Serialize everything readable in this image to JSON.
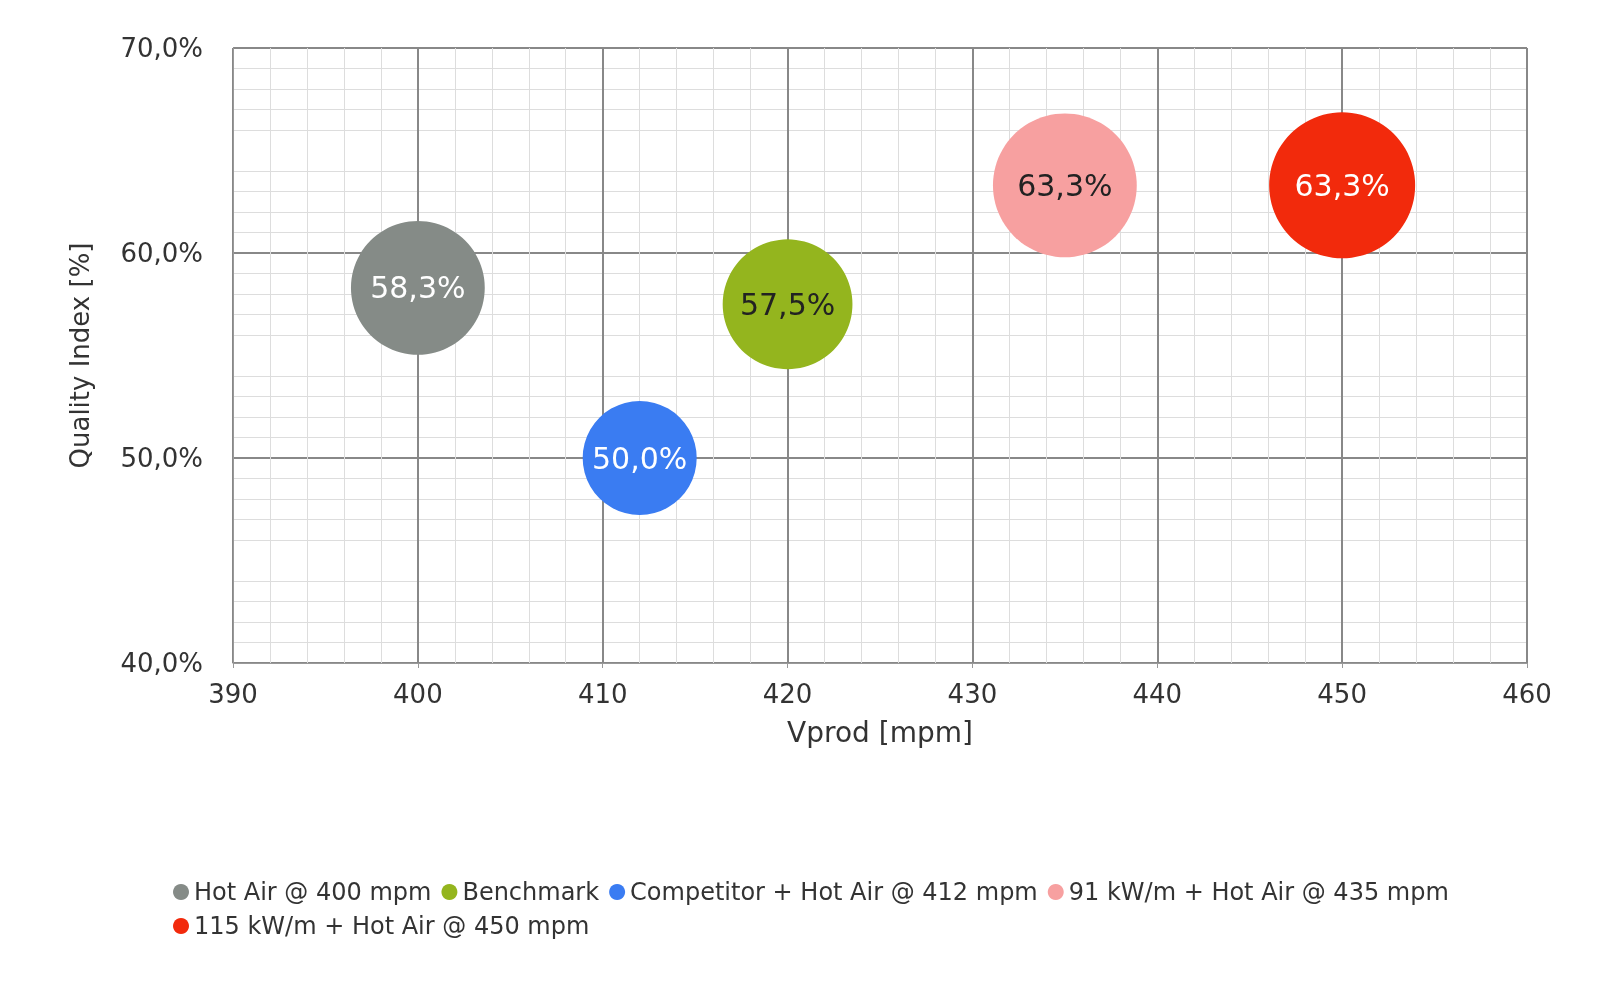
{
  "chart_data": {
    "type": "bubble",
    "xlabel": "Vprod [mpm]",
    "ylabel": "Quality Index [%]",
    "series": [
      {
        "name": "Hot Air @ 400 mpm",
        "color": "#858b87",
        "x": [
          400
        ],
        "values": [
          58.3
        ],
        "sizes": [
          0.84
        ],
        "value_labels": [
          "58,3%"
        ]
      },
      {
        "name": "Benchmark",
        "color": "#94b51e",
        "x": [
          420
        ],
        "values": [
          57.5
        ],
        "sizes": [
          0.79
        ],
        "value_labels": [
          "57,5%"
        ]
      },
      {
        "name": "Competitor + Hot Air @ 412 mpm",
        "color": "#3a7cf2",
        "x": [
          412
        ],
        "values": [
          50.0
        ],
        "sizes": [
          0.61
        ],
        "value_labels": [
          "50,0%"
        ]
      },
      {
        "name": "91 kW/m + Hot Air @ 435 mpm",
        "color": "#f7a0a0",
        "x": [
          435
        ],
        "values": [
          63.3
        ],
        "sizes": [
          0.97
        ],
        "value_labels": [
          "63,3%"
        ]
      },
      {
        "name": "115 kW/m + Hot Air @ 450 mpm",
        "color": "#f22a0c",
        "x": [
          450
        ],
        "values": [
          63.3
        ],
        "sizes": [
          1
        ],
        "value_labels": [
          "63,3%"
        ]
      }
    ],
    "xlim": [
      390,
      460
    ],
    "xticks": [
      390,
      400,
      410,
      420,
      430,
      440,
      450,
      460
    ],
    "ylim": [
      40,
      70
    ],
    "yticks": [
      {
        "value": 40,
        "label": "40,0%"
      },
      {
        "value": 50,
        "label": "50,0%"
      },
      {
        "value": 60,
        "label": "60,0%"
      },
      {
        "value": 70,
        "label": "70,0%"
      }
    ],
    "grid": true,
    "legend": "bottom"
  }
}
